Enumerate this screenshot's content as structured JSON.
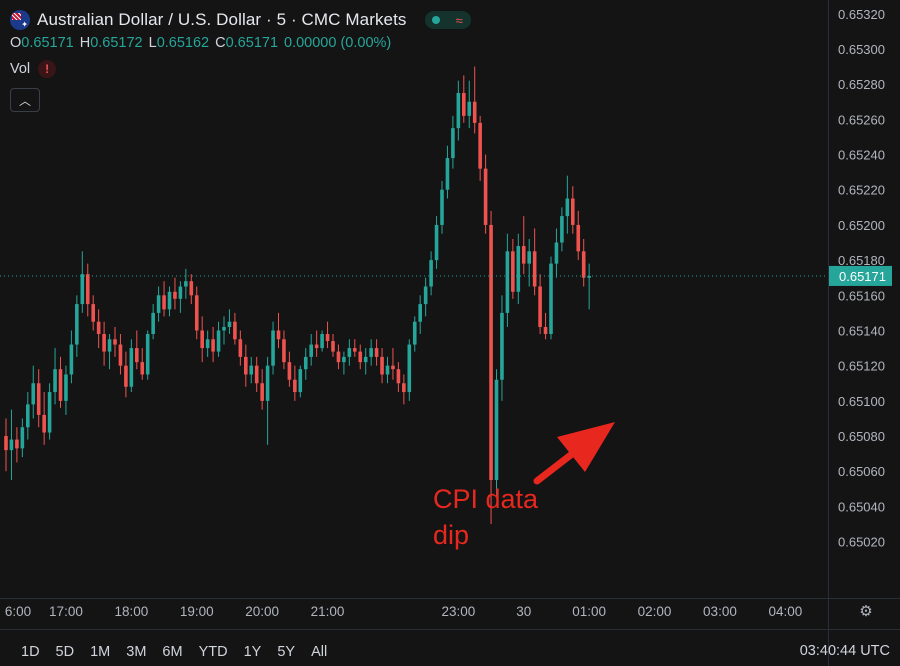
{
  "header": {
    "title": "Australian Dollar / U.S. Dollar · 5 · CMC Markets",
    "ohlc": [
      {
        "key": "O",
        "value": "0.65171"
      },
      {
        "key": "H",
        "value": "0.65172"
      },
      {
        "key": "L",
        "value": "0.65162"
      },
      {
        "key": "C",
        "value": "0.65171"
      }
    ],
    "change": "0.00000 (0.00%)",
    "vol_label": "Vol",
    "warn_symbol": "!"
  },
  "annotation": {
    "line1": "CPI data",
    "line2": "dip"
  },
  "current_price_label": "0.65171",
  "range_buttons": [
    "1D",
    "5D",
    "1M",
    "3M",
    "6M",
    "YTD",
    "1Y",
    "5Y",
    "All"
  ],
  "clock": "03:40:44 UTC",
  "colors": {
    "up": "#26a69a",
    "down": "#ef5350",
    "background": "#141414",
    "annotation": "#e8271e"
  },
  "icons": {
    "flag": "australia-flag-icon",
    "settings": "settings-icon",
    "collapse": "chevron-up-icon",
    "warning": "warning-icon"
  },
  "chart_data": {
    "type": "candlestick",
    "ylim": [
      0.65005,
      0.65325
    ],
    "y_ticks": [
      "0.65020",
      "0.65040",
      "0.65060",
      "0.65080",
      "0.65100",
      "0.65120",
      "0.65140",
      "0.65160",
      "0.65180",
      "0.65200",
      "0.65220",
      "0.65240",
      "0.65260",
      "0.65280",
      "0.65300",
      "0.65320"
    ],
    "x_ticks": [
      {
        "label": "6:00",
        "pos": -1
      },
      {
        "label": "17:00",
        "pos": 11
      },
      {
        "label": "18:00",
        "pos": 23
      },
      {
        "label": "19:00",
        "pos": 35
      },
      {
        "label": "20:00",
        "pos": 47
      },
      {
        "label": "21:00",
        "pos": 59
      },
      {
        "label": "23:00",
        "pos": 83
      },
      {
        "label": "30",
        "pos": 95
      },
      {
        "label": "01:00",
        "pos": 107
      },
      {
        "label": "02:00",
        "pos": 119
      },
      {
        "label": "03:00",
        "pos": 131
      },
      {
        "label": "04:00",
        "pos": 143
      }
    ],
    "current_price": 0.65171,
    "candles": [
      [
        0.6508,
        0.6509,
        0.6506,
        0.65072
      ],
      [
        0.65072,
        0.65095,
        0.65055,
        0.65078
      ],
      [
        0.65078,
        0.65085,
        0.65065,
        0.65073
      ],
      [
        0.65073,
        0.6509,
        0.65068,
        0.65085
      ],
      [
        0.65085,
        0.65105,
        0.65078,
        0.65098
      ],
      [
        0.65098,
        0.6512,
        0.6509,
        0.6511
      ],
      [
        0.6511,
        0.65118,
        0.65085,
        0.65092
      ],
      [
        0.65092,
        0.65105,
        0.65075,
        0.65082
      ],
      [
        0.65082,
        0.6511,
        0.65078,
        0.65105
      ],
      [
        0.65105,
        0.6513,
        0.65098,
        0.65118
      ],
      [
        0.65118,
        0.65125,
        0.65096,
        0.651
      ],
      [
        0.651,
        0.6512,
        0.65092,
        0.65115
      ],
      [
        0.65115,
        0.6514,
        0.6511,
        0.65132
      ],
      [
        0.65132,
        0.6516,
        0.65125,
        0.65155
      ],
      [
        0.65155,
        0.65185,
        0.6515,
        0.65172
      ],
      [
        0.65172,
        0.65178,
        0.65148,
        0.65155
      ],
      [
        0.65155,
        0.6516,
        0.6514,
        0.65145
      ],
      [
        0.65145,
        0.65152,
        0.6513,
        0.65138
      ],
      [
        0.65138,
        0.65145,
        0.6512,
        0.65128
      ],
      [
        0.65128,
        0.65138,
        0.65118,
        0.65135
      ],
      [
        0.65135,
        0.65142,
        0.65125,
        0.65132
      ],
      [
        0.65132,
        0.65138,
        0.65115,
        0.6512
      ],
      [
        0.6512,
        0.65128,
        0.65102,
        0.65108
      ],
      [
        0.65108,
        0.65135,
        0.65105,
        0.6513
      ],
      [
        0.6513,
        0.6514,
        0.65118,
        0.65122
      ],
      [
        0.65122,
        0.6513,
        0.65112,
        0.65115
      ],
      [
        0.65115,
        0.6514,
        0.65112,
        0.65138
      ],
      [
        0.65138,
        0.65155,
        0.65135,
        0.6515
      ],
      [
        0.6515,
        0.65165,
        0.65145,
        0.6516
      ],
      [
        0.6516,
        0.65168,
        0.65148,
        0.65152
      ],
      [
        0.65152,
        0.65165,
        0.65148,
        0.65162
      ],
      [
        0.65162,
        0.6517,
        0.65152,
        0.65158
      ],
      [
        0.65158,
        0.65168,
        0.6515,
        0.65165
      ],
      [
        0.65165,
        0.65175,
        0.65158,
        0.65168
      ],
      [
        0.65168,
        0.65172,
        0.65155,
        0.6516
      ],
      [
        0.6516,
        0.65165,
        0.65135,
        0.6514
      ],
      [
        0.6514,
        0.65148,
        0.65122,
        0.6513
      ],
      [
        0.6513,
        0.6514,
        0.65125,
        0.65135
      ],
      [
        0.65135,
        0.65142,
        0.65122,
        0.65128
      ],
      [
        0.65128,
        0.65145,
        0.65125,
        0.6514
      ],
      [
        0.6514,
        0.65148,
        0.65132,
        0.65142
      ],
      [
        0.65142,
        0.65152,
        0.65138,
        0.65145
      ],
      [
        0.65145,
        0.6515,
        0.65132,
        0.65135
      ],
      [
        0.65135,
        0.6514,
        0.6512,
        0.65125
      ],
      [
        0.65125,
        0.65132,
        0.65108,
        0.65115
      ],
      [
        0.65115,
        0.65125,
        0.6511,
        0.6512
      ],
      [
        0.6512,
        0.65125,
        0.65105,
        0.6511
      ],
      [
        0.6511,
        0.65118,
        0.65095,
        0.651
      ],
      [
        0.651,
        0.65125,
        0.65075,
        0.6512
      ],
      [
        0.6512,
        0.65145,
        0.65115,
        0.6514
      ],
      [
        0.6514,
        0.6515,
        0.6513,
        0.65135
      ],
      [
        0.65135,
        0.6514,
        0.65118,
        0.65122
      ],
      [
        0.65122,
        0.65128,
        0.65108,
        0.65112
      ],
      [
        0.65112,
        0.6512,
        0.651,
        0.65105
      ],
      [
        0.65105,
        0.6512,
        0.65102,
        0.65118
      ],
      [
        0.65118,
        0.6513,
        0.65112,
        0.65125
      ],
      [
        0.65125,
        0.65138,
        0.6512,
        0.65132
      ],
      [
        0.65132,
        0.6514,
        0.65125,
        0.6513
      ],
      [
        0.6513,
        0.6514,
        0.65128,
        0.65138
      ],
      [
        0.65138,
        0.65145,
        0.6513,
        0.65134
      ],
      [
        0.65134,
        0.65138,
        0.65125,
        0.65128
      ],
      [
        0.65128,
        0.65132,
        0.65118,
        0.65122
      ],
      [
        0.65122,
        0.65128,
        0.65115,
        0.65125
      ],
      [
        0.65125,
        0.65135,
        0.6512,
        0.6513
      ],
      [
        0.6513,
        0.65135,
        0.65125,
        0.65128
      ],
      [
        0.65128,
        0.65132,
        0.65118,
        0.65122
      ],
      [
        0.65122,
        0.6513,
        0.65115,
        0.65125
      ],
      [
        0.65125,
        0.65135,
        0.6512,
        0.6513
      ],
      [
        0.6513,
        0.65135,
        0.6512,
        0.65125
      ],
      [
        0.65125,
        0.6513,
        0.6511,
        0.65115
      ],
      [
        0.65115,
        0.65125,
        0.6511,
        0.6512
      ],
      [
        0.6512,
        0.6513,
        0.65112,
        0.65118
      ],
      [
        0.65118,
        0.65122,
        0.65105,
        0.6511
      ],
      [
        0.6511,
        0.65115,
        0.65098,
        0.65105
      ],
      [
        0.65105,
        0.65135,
        0.651,
        0.65132
      ],
      [
        0.65132,
        0.65148,
        0.65128,
        0.65145
      ],
      [
        0.65145,
        0.6516,
        0.65138,
        0.65155
      ],
      [
        0.65155,
        0.6517,
        0.65148,
        0.65165
      ],
      [
        0.65165,
        0.65185,
        0.6516,
        0.6518
      ],
      [
        0.6518,
        0.65205,
        0.65175,
        0.652
      ],
      [
        0.652,
        0.65225,
        0.65195,
        0.6522
      ],
      [
        0.6522,
        0.65245,
        0.65215,
        0.65238
      ],
      [
        0.65238,
        0.65262,
        0.65232,
        0.65255
      ],
      [
        0.65255,
        0.65282,
        0.65248,
        0.65275
      ],
      [
        0.65275,
        0.65285,
        0.65258,
        0.65262
      ],
      [
        0.65262,
        0.65282,
        0.65255,
        0.6527
      ],
      [
        0.6527,
        0.6529,
        0.65252,
        0.65258
      ],
      [
        0.65258,
        0.65262,
        0.65225,
        0.65232
      ],
      [
        0.65232,
        0.6524,
        0.65195,
        0.652
      ],
      [
        0.652,
        0.65208,
        0.6503,
        0.65055
      ],
      [
        0.65055,
        0.65118,
        0.65045,
        0.65112
      ],
      [
        0.65112,
        0.6516,
        0.651,
        0.6515
      ],
      [
        0.6515,
        0.65195,
        0.65142,
        0.65185
      ],
      [
        0.65185,
        0.65192,
        0.65158,
        0.65162
      ],
      [
        0.65162,
        0.65195,
        0.65155,
        0.65188
      ],
      [
        0.65188,
        0.65205,
        0.65172,
        0.65178
      ],
      [
        0.65178,
        0.65192,
        0.65165,
        0.65185
      ],
      [
        0.65185,
        0.65198,
        0.6516,
        0.65165
      ],
      [
        0.65165,
        0.65172,
        0.65138,
        0.65142
      ],
      [
        0.65142,
        0.6515,
        0.65135,
        0.65138
      ],
      [
        0.65138,
        0.65182,
        0.65135,
        0.65178
      ],
      [
        0.65178,
        0.65198,
        0.6517,
        0.6519
      ],
      [
        0.6519,
        0.6521,
        0.65185,
        0.65205
      ],
      [
        0.65205,
        0.65228,
        0.65195,
        0.65215
      ],
      [
        0.65215,
        0.65222,
        0.65195,
        0.652
      ],
      [
        0.652,
        0.65208,
        0.6518,
        0.65185
      ],
      [
        0.65185,
        0.65192,
        0.65165,
        0.6517
      ],
      [
        0.6517,
        0.65178,
        0.65152,
        0.65171
      ]
    ]
  }
}
